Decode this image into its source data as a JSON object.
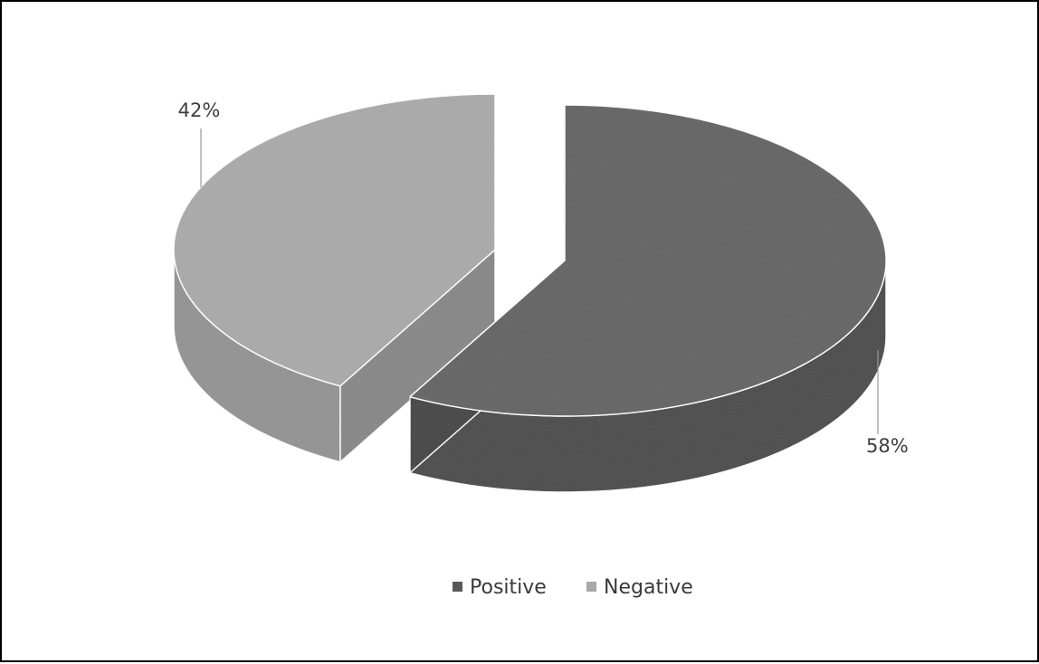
{
  "chart_data": {
    "type": "pie",
    "variant": "3d-exploded",
    "series": [
      {
        "values": [
          58,
          42
        ]
      }
    ],
    "categories": [
      "Positive",
      "Negative"
    ],
    "slices": [
      {
        "label": "Positive",
        "value": 58,
        "display": "58%",
        "color": "#5a5a5a"
      },
      {
        "label": "Negative",
        "value": 42,
        "display": "42%",
        "color": "#a8a8a8"
      }
    ],
    "legend": {
      "position": "bottom",
      "items": [
        {
          "label": "Positive",
          "color": "#5a5a5a"
        },
        {
          "label": "Negative",
          "color": "#a8a8a8"
        }
      ]
    }
  }
}
